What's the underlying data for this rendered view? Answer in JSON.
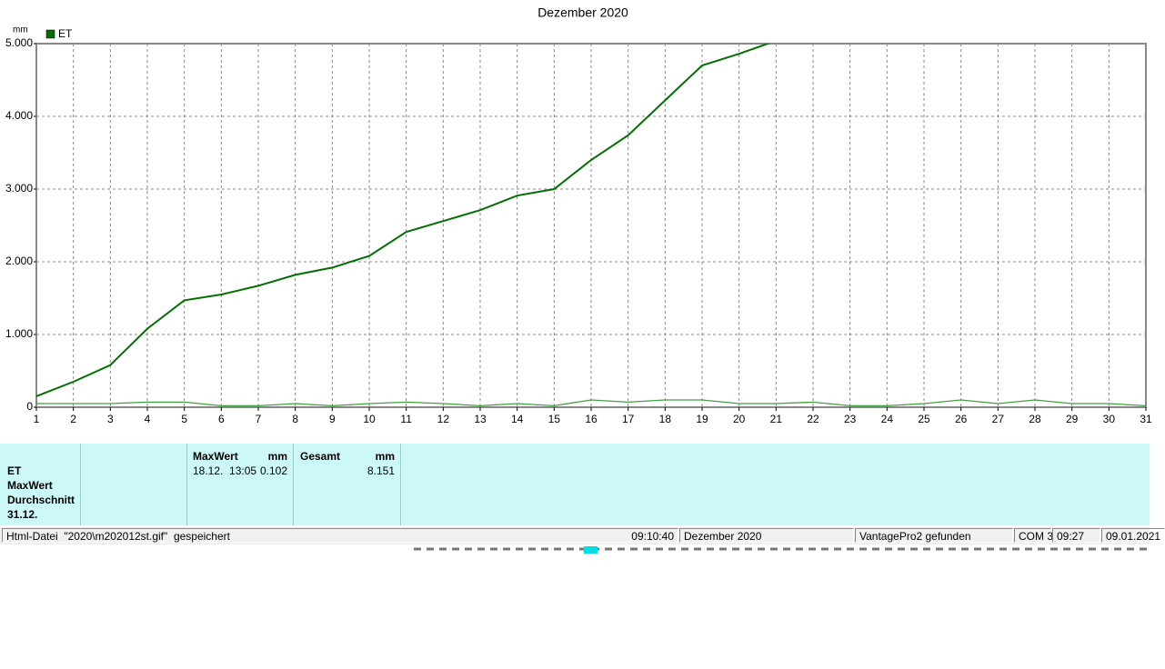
{
  "chart_data": {
    "type": "line",
    "title": "Dezember 2020",
    "y_unit": "mm",
    "x": [
      1,
      2,
      3,
      4,
      5,
      6,
      7,
      8,
      9,
      10,
      11,
      12,
      13,
      14,
      15,
      16,
      17,
      18,
      19,
      20,
      21,
      22,
      23,
      24,
      25,
      26,
      27,
      28,
      29,
      30,
      31
    ],
    "xlim": [
      1,
      31
    ],
    "xticks": [
      1,
      2,
      3,
      4,
      5,
      6,
      7,
      8,
      9,
      10,
      11,
      12,
      13,
      14,
      15,
      16,
      17,
      18,
      19,
      20,
      21,
      22,
      23,
      24,
      25,
      26,
      27,
      28,
      29,
      30,
      31
    ],
    "ylim": [
      0,
      5
    ],
    "yticks": [
      0,
      {
        "value": 1,
        "label": "1.000"
      },
      {
        "value": 2,
        "label": "2.000"
      },
      {
        "value": 3,
        "label": "3.000"
      },
      {
        "value": 4,
        "label": "4.000"
      },
      {
        "value": 5,
        "label": "5.000"
      }
    ],
    "grid": true,
    "series": [
      {
        "name": "ET",
        "color": "#007000",
        "values": [
          0.15,
          0.35,
          0.58,
          1.08,
          1.47,
          1.55,
          1.67,
          1.82,
          1.92,
          2.08,
          2.41,
          2.56,
          2.71,
          2.91,
          3.0,
          3.4,
          3.74,
          4.22,
          4.7,
          4.86,
          5.04,
          null,
          null,
          null,
          null,
          null,
          null,
          null,
          null,
          null,
          null
        ]
      },
      {
        "color": "#40a040",
        "values": [
          0.05,
          0.05,
          0.05,
          0.07,
          0.07,
          0.02,
          0.02,
          0.05,
          0.02,
          0.05,
          0.07,
          0.05,
          0.02,
          0.05,
          0.02,
          0.1,
          0.07,
          0.1,
          0.1,
          0.05,
          0.05,
          0.07,
          0.02,
          0.02,
          0.05,
          0.1,
          0.05,
          0.1,
          0.05,
          0.05,
          0.02
        ]
      }
    ]
  },
  "info_panel": {
    "labels": [
      "ET",
      "MaxWert",
      "Durchschnitt",
      "31.12."
    ],
    "max": {
      "title": "MaxWert",
      "unit": "mm",
      "time": "18.12.  13:05",
      "value": "0.102"
    },
    "total": {
      "title": "Gesamt",
      "unit": "mm",
      "value": "8.151"
    }
  },
  "status_bar": [
    "Html-Datei  \"2020\\m202012st.gif\"  gespeichert",
    "09:10:40",
    "Dezember 2020",
    "VantagePro2 gefunden",
    "COM 3",
    "09:27",
    "09.01.2021"
  ]
}
